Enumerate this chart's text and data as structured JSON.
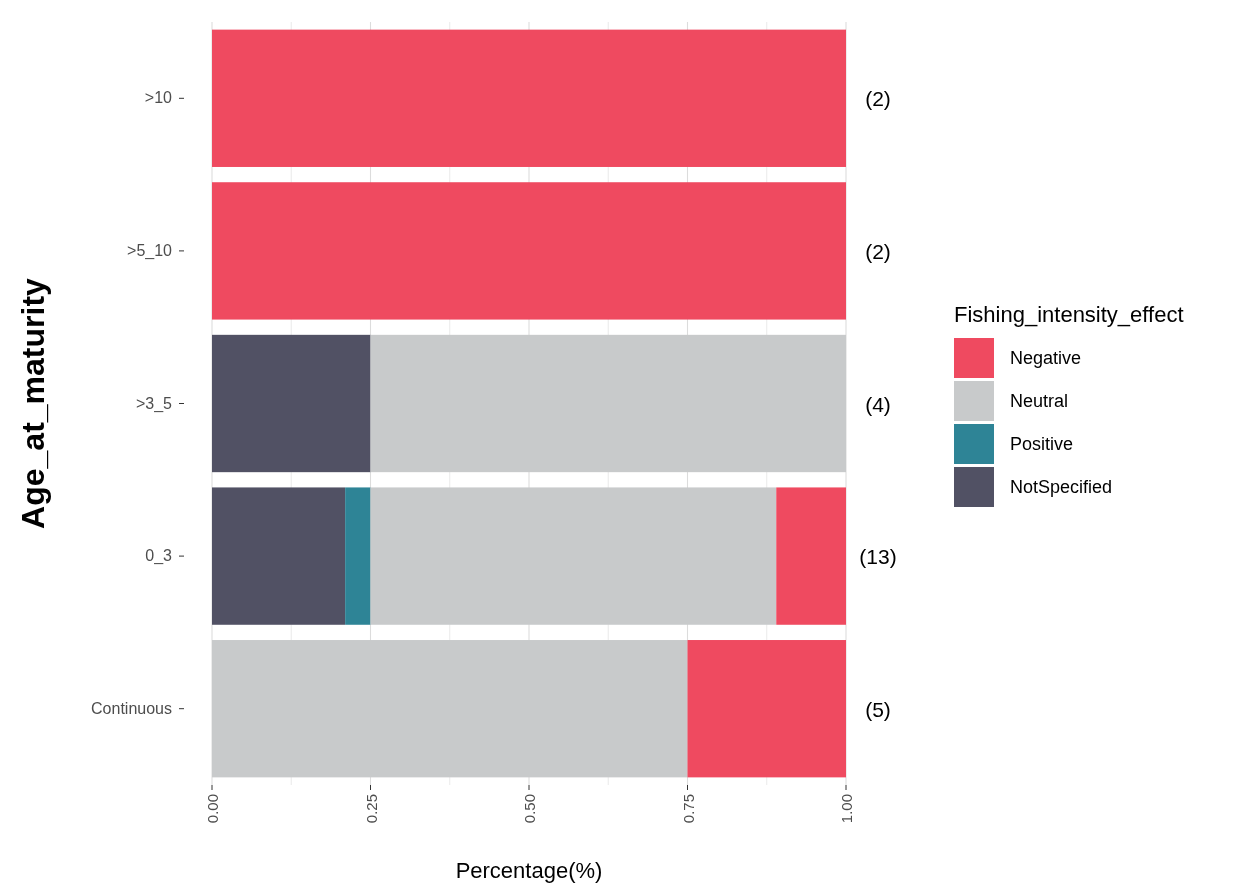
{
  "chart_data": {
    "type": "bar",
    "orientation": "horizontal",
    "stacked": true,
    "categories": [
      ">10",
      ">5_10",
      ">3_5",
      "0_3",
      "Continuous"
    ],
    "series": [
      {
        "name": "NotSpecified",
        "color": "#515164",
        "values": [
          0,
          0,
          0.25,
          0.21,
          0
        ]
      },
      {
        "name": "Positive",
        "color": "#2e8496",
        "values": [
          0,
          0,
          0,
          0.04,
          0
        ]
      },
      {
        "name": "Neutral",
        "color": "#c8cacb",
        "values": [
          0,
          0,
          0.75,
          0.64,
          0.75
        ]
      },
      {
        "name": "Negative",
        "color": "#ef4a60",
        "values": [
          1,
          1,
          0,
          0.11,
          0.25
        ]
      }
    ],
    "xlim": [
      0,
      1
    ],
    "xticks": [
      {
        "value": 0,
        "label": "0.00"
      },
      {
        "value": 0.125,
        "label": null
      },
      {
        "value": 0.25,
        "label": "0.25"
      },
      {
        "value": 0.375,
        "label": null
      },
      {
        "value": 0.5,
        "label": "0.50"
      },
      {
        "value": 0.625,
        "label": null
      },
      {
        "value": 0.75,
        "label": "0.75"
      },
      {
        "value": 0.875,
        "label": null
      },
      {
        "value": 1,
        "label": "1.00"
      }
    ],
    "xlabel": "Percentage(%)",
    "ylabel": "Age_at_maturity",
    "legend_title": "Fishing_intensity_effect",
    "legend": "right",
    "grid": "x",
    "annotations": [
      "(2)",
      "(2)",
      "(4)",
      "(13)",
      "(5)"
    ]
  }
}
